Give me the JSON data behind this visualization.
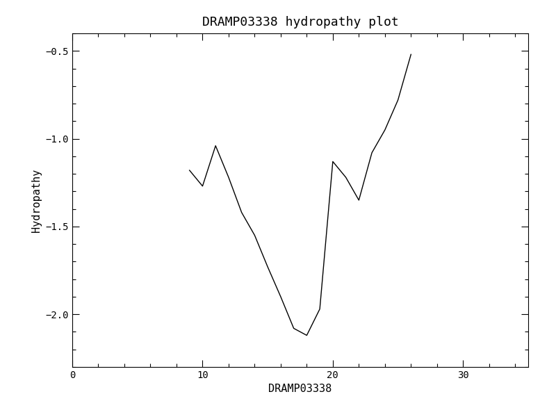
{
  "title": "DRAMP03338 hydropathy plot",
  "xlabel": "DRAMP03338",
  "ylabel": "Hydropathy",
  "xlim": [
    0,
    35
  ],
  "ylim": [
    -2.3,
    -0.4
  ],
  "yticks": [
    -0.5,
    -1.0,
    -1.5,
    -2.0
  ],
  "xticks": [
    0,
    10,
    20,
    30
  ],
  "x": [
    9,
    10,
    11,
    12,
    13,
    14,
    15,
    16,
    17,
    18,
    19,
    20,
    21,
    22,
    23,
    24,
    25,
    26
  ],
  "y": [
    -1.18,
    -1.27,
    -1.04,
    -1.22,
    -1.42,
    -1.55,
    -1.73,
    -1.9,
    -2.08,
    -2.12,
    -1.97,
    -1.13,
    -1.22,
    -1.35,
    -1.08,
    -0.95,
    -0.78,
    -0.52
  ],
  "line_color": "#000000",
  "line_width": 1.0,
  "background_color": "#ffffff",
  "font_family": "monospace",
  "title_fontsize": 13,
  "label_fontsize": 11,
  "tick_fontsize": 10
}
